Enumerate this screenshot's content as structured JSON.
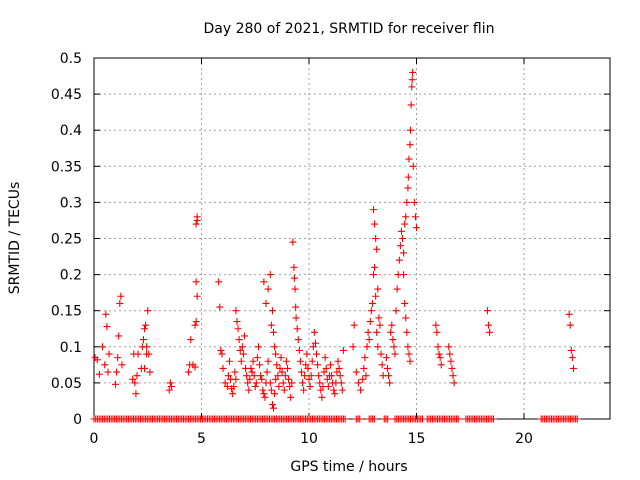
{
  "chart_data": {
    "type": "scatter",
    "title": "Day 280 of 2021, SRMTID for receiver flin",
    "xlabel": "GPS time / hours",
    "ylabel": "SRMTID / TECUs",
    "xlim": [
      0,
      24
    ],
    "ylim": [
      0,
      0.5
    ],
    "xticks": [
      0,
      5,
      10,
      15,
      20
    ],
    "yticks": [
      0,
      0.05,
      0.1,
      0.15,
      0.2,
      0.25,
      0.3,
      0.35,
      0.4,
      0.45,
      0.5
    ],
    "grid": true,
    "marker": "+",
    "color": "#ff0000",
    "series": [
      {
        "name": "SRMTID",
        "points": [
          [
            0.05,
            0.085
          ],
          [
            0.15,
            0.082
          ],
          [
            0.25,
            0.062
          ],
          [
            0.4,
            0.1
          ],
          [
            0.5,
            0.075
          ],
          [
            0.55,
            0.145
          ],
          [
            0.6,
            0.128
          ],
          [
            0.65,
            0.065
          ],
          [
            0.7,
            0.09
          ],
          [
            1.0,
            0.048
          ],
          [
            1.05,
            0.065
          ],
          [
            1.1,
            0.085
          ],
          [
            1.15,
            0.115
          ],
          [
            1.2,
            0.16
          ],
          [
            1.25,
            0.17
          ],
          [
            1.3,
            0.075
          ],
          [
            1.8,
            0.055
          ],
          [
            1.85,
            0.09
          ],
          [
            1.9,
            0.05
          ],
          [
            1.95,
            0.035
          ],
          [
            2.0,
            0.06
          ],
          [
            2.05,
            0.09
          ],
          [
            2.2,
            0.07
          ],
          [
            2.25,
            0.1
          ],
          [
            2.3,
            0.11
          ],
          [
            2.35,
            0.125
          ],
          [
            2.4,
            0.13
          ],
          [
            2.45,
            0.1
          ],
          [
            2.5,
            0.15
          ],
          [
            2.55,
            0.09
          ],
          [
            2.6,
            0.065
          ],
          [
            2.45,
            0.09
          ],
          [
            2.35,
            0.07
          ],
          [
            3.5,
            0.04
          ],
          [
            3.55,
            0.05
          ],
          [
            3.6,
            0.045
          ],
          [
            4.4,
            0.065
          ],
          [
            4.45,
            0.075
          ],
          [
            4.5,
            0.11
          ],
          [
            4.6,
            0.075
          ],
          [
            4.7,
            0.072
          ],
          [
            4.75,
            0.27
          ],
          [
            4.8,
            0.28
          ],
          [
            4.8,
            0.275
          ],
          [
            4.75,
            0.19
          ],
          [
            4.8,
            0.17
          ],
          [
            4.7,
            0.13
          ],
          [
            4.75,
            0.135
          ],
          [
            5.8,
            0.19
          ],
          [
            5.85,
            0.155
          ],
          [
            5.9,
            0.095
          ],
          [
            5.95,
            0.09
          ],
          [
            6.0,
            0.07
          ],
          [
            6.1,
            0.05
          ],
          [
            6.2,
            0.045
          ],
          [
            6.25,
            0.06
          ],
          [
            6.3,
            0.08
          ],
          [
            6.35,
            0.055
          ],
          [
            6.4,
            0.042
          ],
          [
            6.45,
            0.035
          ],
          [
            6.5,
            0.045
          ],
          [
            6.55,
            0.065
          ],
          [
            6.6,
            0.055
          ],
          [
            6.6,
            0.15
          ],
          [
            6.65,
            0.135
          ],
          [
            6.7,
            0.125
          ],
          [
            6.75,
            0.11
          ],
          [
            6.8,
            0.095
          ],
          [
            6.85,
            0.08
          ],
          [
            6.9,
            0.1
          ],
          [
            6.95,
            0.09
          ],
          [
            7.0,
            0.115
          ],
          [
            7.05,
            0.07
          ],
          [
            7.1,
            0.06
          ],
          [
            7.15,
            0.05
          ],
          [
            7.2,
            0.04
          ],
          [
            7.25,
            0.055
          ],
          [
            7.3,
            0.07
          ],
          [
            7.35,
            0.065
          ],
          [
            7.4,
            0.08
          ],
          [
            7.45,
            0.06
          ],
          [
            7.5,
            0.045
          ],
          [
            7.55,
            0.05
          ],
          [
            7.6,
            0.085
          ],
          [
            7.65,
            0.1
          ],
          [
            7.7,
            0.075
          ],
          [
            7.75,
            0.06
          ],
          [
            7.8,
            0.055
          ],
          [
            7.85,
            0.04
          ],
          [
            7.9,
            0.035
          ],
          [
            7.95,
            0.03
          ],
          [
            8.0,
            0.05
          ],
          [
            8.05,
            0.065
          ],
          [
            8.1,
            0.08
          ],
          [
            7.9,
            0.19
          ],
          [
            8.0,
            0.16
          ],
          [
            8.1,
            0.18
          ],
          [
            8.2,
            0.2
          ],
          [
            8.25,
            0.13
          ],
          [
            8.3,
            0.15
          ],
          [
            8.35,
            0.12
          ],
          [
            8.4,
            0.1
          ],
          [
            8.45,
            0.09
          ],
          [
            8.5,
            0.075
          ],
          [
            8.2,
            0.05
          ],
          [
            8.25,
            0.04
          ],
          [
            8.3,
            0.02
          ],
          [
            8.35,
            0.015
          ],
          [
            8.4,
            0.035
          ],
          [
            8.45,
            0.055
          ],
          [
            8.55,
            0.06
          ],
          [
            8.6,
            0.045
          ],
          [
            8.65,
            0.07
          ],
          [
            8.7,
            0.085
          ],
          [
            8.75,
            0.065
          ],
          [
            8.8,
            0.05
          ],
          [
            8.85,
            0.04
          ],
          [
            8.9,
            0.06
          ],
          [
            8.95,
            0.08
          ],
          [
            9.0,
            0.07
          ],
          [
            9.05,
            0.055
          ],
          [
            9.1,
            0.045
          ],
          [
            9.15,
            0.03
          ],
          [
            9.2,
            0.05
          ],
          [
            9.25,
            0.245
          ],
          [
            9.3,
            0.21
          ],
          [
            9.32,
            0.195
          ],
          [
            9.35,
            0.18
          ],
          [
            9.38,
            0.155
          ],
          [
            9.4,
            0.14
          ],
          [
            9.45,
            0.125
          ],
          [
            9.5,
            0.11
          ],
          [
            9.55,
            0.095
          ],
          [
            9.6,
            0.08
          ],
          [
            9.65,
            0.065
          ],
          [
            9.7,
            0.05
          ],
          [
            9.75,
            0.04
          ],
          [
            9.8,
            0.06
          ],
          [
            9.85,
            0.075
          ],
          [
            9.9,
            0.09
          ],
          [
            9.95,
            0.07
          ],
          [
            10.0,
            0.055
          ],
          [
            10.05,
            0.045
          ],
          [
            10.1,
            0.06
          ],
          [
            10.15,
            0.08
          ],
          [
            10.2,
            0.1
          ],
          [
            10.25,
            0.12
          ],
          [
            10.3,
            0.105
          ],
          [
            10.35,
            0.09
          ],
          [
            10.4,
            0.075
          ],
          [
            10.45,
            0.06
          ],
          [
            10.5,
            0.05
          ],
          [
            10.55,
            0.04
          ],
          [
            10.6,
            0.03
          ],
          [
            10.65,
            0.045
          ],
          [
            10.7,
            0.065
          ],
          [
            10.75,
            0.085
          ],
          [
            10.8,
            0.07
          ],
          [
            10.85,
            0.055
          ],
          [
            10.9,
            0.045
          ],
          [
            10.95,
            0.06
          ],
          [
            11.0,
            0.075
          ],
          [
            11.05,
            0.06
          ],
          [
            11.1,
            0.05
          ],
          [
            11.15,
            0.04
          ],
          [
            11.2,
            0.035
          ],
          [
            11.25,
            0.05
          ],
          [
            11.3,
            0.065
          ],
          [
            11.35,
            0.08
          ],
          [
            11.4,
            0.07
          ],
          [
            11.45,
            0.06
          ],
          [
            11.5,
            0.05
          ],
          [
            11.55,
            0.04
          ],
          [
            11.6,
            0.095
          ],
          [
            12.05,
            0.1
          ],
          [
            12.1,
            0.13
          ],
          [
            12.2,
            0.065
          ],
          [
            12.3,
            0.05
          ],
          [
            12.4,
            0.04
          ],
          [
            12.5,
            0.055
          ],
          [
            12.55,
            0.07
          ],
          [
            12.6,
            0.085
          ],
          [
            12.65,
            0.06
          ],
          [
            12.7,
            0.1
          ],
          [
            12.75,
            0.12
          ],
          [
            12.8,
            0.11
          ],
          [
            12.85,
            0.135
          ],
          [
            12.9,
            0.15
          ],
          [
            12.95,
            0.16
          ],
          [
            13.0,
            0.2
          ],
          [
            13.05,
            0.21
          ],
          [
            13.1,
            0.17
          ],
          [
            13.15,
            0.12
          ],
          [
            13.2,
            0.1
          ],
          [
            13.0,
            0.29
          ],
          [
            13.05,
            0.27
          ],
          [
            13.1,
            0.25
          ],
          [
            13.15,
            0.235
          ],
          [
            13.2,
            0.18
          ],
          [
            13.25,
            0.14
          ],
          [
            13.3,
            0.13
          ],
          [
            13.35,
            0.09
          ],
          [
            13.4,
            0.075
          ],
          [
            13.45,
            0.06
          ],
          [
            13.6,
            0.085
          ],
          [
            13.65,
            0.07
          ],
          [
            13.7,
            0.06
          ],
          [
            13.75,
            0.05
          ],
          [
            13.8,
            0.12
          ],
          [
            13.85,
            0.13
          ],
          [
            13.9,
            0.11
          ],
          [
            13.95,
            0.1
          ],
          [
            14.0,
            0.09
          ],
          [
            14.05,
            0.15
          ],
          [
            14.1,
            0.18
          ],
          [
            14.15,
            0.2
          ],
          [
            14.2,
            0.22
          ],
          [
            14.25,
            0.24
          ],
          [
            14.3,
            0.26
          ],
          [
            14.35,
            0.25
          ],
          [
            14.4,
            0.23
          ],
          [
            14.45,
            0.27
          ],
          [
            14.5,
            0.28
          ],
          [
            14.55,
            0.3
          ],
          [
            14.6,
            0.32
          ],
          [
            14.62,
            0.335
          ],
          [
            14.65,
            0.36
          ],
          [
            14.7,
            0.38
          ],
          [
            14.72,
            0.4
          ],
          [
            14.75,
            0.435
          ],
          [
            14.78,
            0.46
          ],
          [
            14.8,
            0.47
          ],
          [
            14.82,
            0.48
          ],
          [
            14.85,
            0.35
          ],
          [
            14.9,
            0.3
          ],
          [
            14.95,
            0.28
          ],
          [
            15.0,
            0.265
          ],
          [
            14.4,
            0.2
          ],
          [
            14.45,
            0.16
          ],
          [
            14.5,
            0.14
          ],
          [
            14.55,
            0.12
          ],
          [
            14.6,
            0.1
          ],
          [
            14.65,
            0.09
          ],
          [
            14.7,
            0.08
          ],
          [
            15.9,
            0.13
          ],
          [
            15.95,
            0.12
          ],
          [
            16.0,
            0.1
          ],
          [
            16.05,
            0.09
          ],
          [
            16.1,
            0.085
          ],
          [
            16.15,
            0.075
          ],
          [
            16.5,
            0.1
          ],
          [
            16.55,
            0.09
          ],
          [
            16.6,
            0.08
          ],
          [
            16.65,
            0.07
          ],
          [
            16.7,
            0.06
          ],
          [
            16.75,
            0.05
          ],
          [
            18.3,
            0.15
          ],
          [
            18.35,
            0.13
          ],
          [
            18.4,
            0.12
          ],
          [
            22.1,
            0.145
          ],
          [
            22.15,
            0.13
          ],
          [
            22.2,
            0.095
          ],
          [
            22.25,
            0.085
          ],
          [
            22.3,
            0.07
          ]
        ],
        "zero_ranges": [
          [
            0,
            11.7
          ],
          [
            12.2,
            12.4
          ],
          [
            12.8,
            13.1
          ],
          [
            13.5,
            13.7
          ],
          [
            14.0,
            15.3
          ],
          [
            15.5,
            17.0
          ],
          [
            17.3,
            18.6
          ],
          [
            20.8,
            22.5
          ]
        ]
      }
    ]
  }
}
